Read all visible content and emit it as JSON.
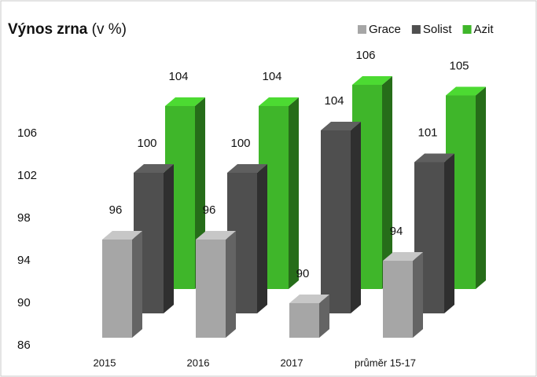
{
  "chart_data": {
    "type": "bar3d",
    "title": "Výnos zrna",
    "title_unit": "(v %)",
    "categories": [
      "2015",
      "2016",
      "2017",
      "průměr 15-17"
    ],
    "series": [
      {
        "name": "Grace",
        "color": "#a6a6a6",
        "values": [
          96,
          96,
          90,
          94
        ]
      },
      {
        "name": "Solist",
        "color": "#4f4f4f",
        "values": [
          100,
          100,
          104,
          101
        ]
      },
      {
        "name": "Azit",
        "color": "#3fb62a",
        "values": [
          104,
          104,
          106,
          105
        ]
      }
    ],
    "ylim": [
      86,
      106
    ],
    "yticks": [
      86,
      90,
      94,
      98,
      102,
      106
    ],
    "legend": "top-right"
  }
}
